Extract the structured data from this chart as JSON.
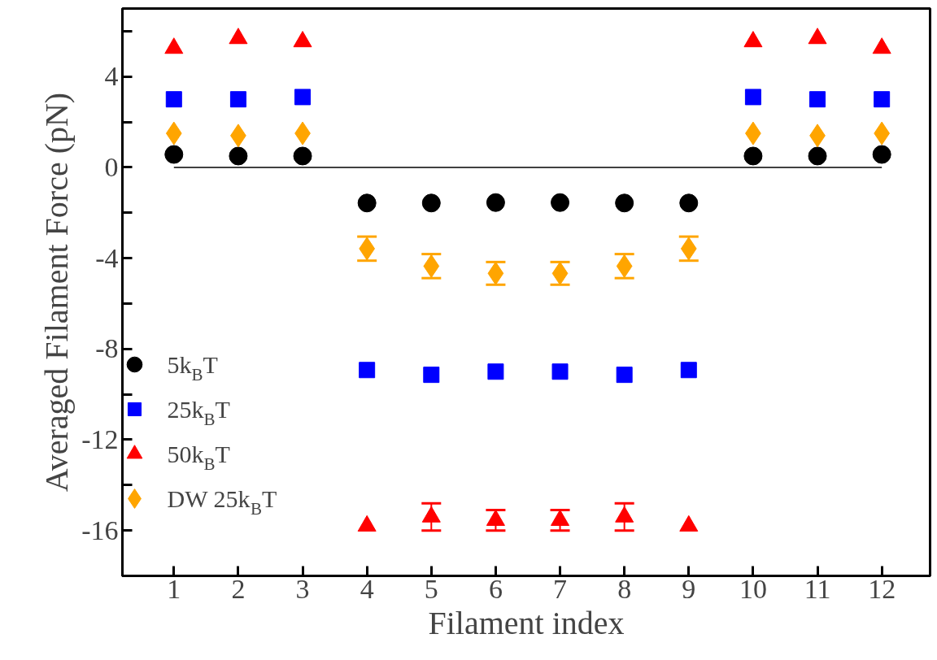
{
  "chart_data": {
    "type": "scatter",
    "xlabel": "Filament index",
    "ylabel": "Averaged Filament Force (pN)",
    "x": [
      1,
      2,
      3,
      4,
      5,
      6,
      7,
      8,
      9,
      10,
      11,
      12
    ],
    "xlim": [
      0.2,
      12.75
    ],
    "xticks": [
      1,
      2,
      3,
      4,
      5,
      6,
      7,
      8,
      9,
      10,
      11,
      12
    ],
    "ylim": [
      -18,
      7
    ],
    "yticks": [
      {
        "value": -18,
        "label": null
      },
      -16,
      {
        "value": -14,
        "label": null
      },
      -12,
      {
        "value": -10,
        "label": null
      },
      -8,
      {
        "value": -6,
        "label": null
      },
      -4,
      {
        "value": -2,
        "label": null
      },
      0,
      {
        "value": 2,
        "label": null
      },
      4,
      {
        "value": 6,
        "label": null
      }
    ],
    "grid": false,
    "legend": "bottom left",
    "ref_lines": [
      {
        "axis": "y",
        "value": 0,
        "color": "#000000"
      }
    ],
    "series": [
      {
        "name": "5k$_{B}$T",
        "color": "#000000",
        "marker": "circle",
        "values": [
          0.57,
          0.5,
          0.5,
          -1.57,
          -1.57,
          -1.55,
          -1.55,
          -1.57,
          -1.57,
          0.5,
          0.5,
          0.57
        ]
      },
      {
        "name": "25k$_{B}$T",
        "color": "#0000ff",
        "marker": "square",
        "values": [
          3.0,
          3.0,
          3.1,
          -8.93,
          -9.14,
          -9.0,
          -9.0,
          -9.14,
          -8.93,
          3.1,
          3.0,
          3.0
        ]
      },
      {
        "name": "50k$_{B}$T",
        "color": "#ff0000",
        "marker": "triangle",
        "values": [
          5.25,
          5.68,
          5.54,
          -15.8,
          -15.4,
          -15.55,
          -15.55,
          -15.4,
          -15.8,
          5.54,
          5.68,
          5.25
        ],
        "errors": [
          null,
          null,
          null,
          null,
          0.6,
          0.45,
          0.45,
          0.6,
          null,
          null,
          null,
          null
        ]
      },
      {
        "name": "DW 25k$_{B}$T",
        "color": "#ffa500",
        "marker": "diamond",
        "values": [
          1.5,
          1.4,
          1.5,
          -3.58,
          -4.35,
          -4.67,
          -4.67,
          -4.35,
          -3.58,
          1.5,
          1.4,
          1.5
        ],
        "errors": [
          null,
          null,
          null,
          0.53,
          0.53,
          0.5,
          0.5,
          0.53,
          0.53,
          null,
          null,
          null
        ]
      }
    ]
  }
}
